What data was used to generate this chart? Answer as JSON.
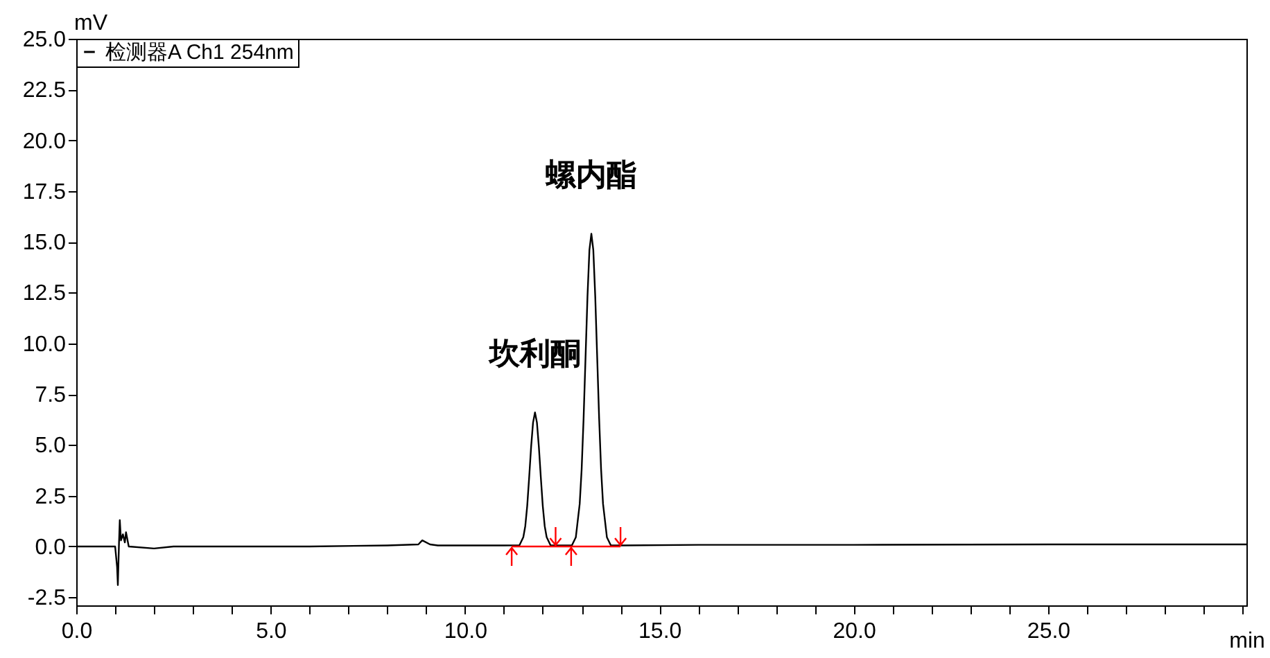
{
  "chart_data": {
    "type": "line",
    "xlabel": "min",
    "ylabel": "mV",
    "legend": "top left",
    "xlim": [
      0,
      30.1
    ],
    "ylim": [
      -2.9,
      25
    ],
    "xticks": [
      {
        "value": 0,
        "label": "0.0"
      },
      {
        "value": 1,
        "label": null
      },
      {
        "value": 2,
        "label": null
      },
      {
        "value": 3,
        "label": null
      },
      {
        "value": 4,
        "label": null
      },
      {
        "value": 5,
        "label": "5.0"
      },
      {
        "value": 6,
        "label": null
      },
      {
        "value": 7,
        "label": null
      },
      {
        "value": 8,
        "label": null
      },
      {
        "value": 9,
        "label": null
      },
      {
        "value": 10,
        "label": "10.0"
      },
      {
        "value": 11,
        "label": null
      },
      {
        "value": 12,
        "label": null
      },
      {
        "value": 13,
        "label": null
      },
      {
        "value": 14,
        "label": null
      },
      {
        "value": 15,
        "label": "15.0"
      },
      {
        "value": 16,
        "label": null
      },
      {
        "value": 17,
        "label": null
      },
      {
        "value": 18,
        "label": null
      },
      {
        "value": 19,
        "label": null
      },
      {
        "value": 20,
        "label": "20.0"
      },
      {
        "value": 21,
        "label": null
      },
      {
        "value": 22,
        "label": null
      },
      {
        "value": 23,
        "label": null
      },
      {
        "value": 24,
        "label": null
      },
      {
        "value": 25,
        "label": "25.0"
      },
      {
        "value": 26,
        "label": null
      },
      {
        "value": 27,
        "label": null
      },
      {
        "value": 28,
        "label": null
      },
      {
        "value": 29,
        "label": null
      },
      {
        "value": 30,
        "label": null
      }
    ],
    "yticks": [
      {
        "value": -2.5,
        "label": "-2.5"
      },
      {
        "value": 0,
        "label": "0.0"
      },
      {
        "value": 2.5,
        "label": "2.5"
      },
      {
        "value": 5,
        "label": "5.0"
      },
      {
        "value": 7.5,
        "label": "7.5"
      },
      {
        "value": 10,
        "label": "10.0"
      },
      {
        "value": 12.5,
        "label": "12.5"
      },
      {
        "value": 15,
        "label": "15.0"
      },
      {
        "value": 17.5,
        "label": "17.5"
      },
      {
        "value": 20,
        "label": "20.0"
      },
      {
        "value": 22.5,
        "label": "22.5"
      },
      {
        "value": 25,
        "label": "25.0"
      }
    ],
    "annotations": [
      {
        "text": "坎利酮",
        "x": 11.8,
        "y": 6.6
      },
      {
        "text": "螺内酯",
        "x": 13.25,
        "y": 15.4
      }
    ],
    "series": [
      {
        "name": "检测器A Ch1 254nm",
        "color": "#000000",
        "x": [
          0,
          1.0,
          1.05,
          1.07,
          1.1,
          1.12,
          1.15,
          1.2,
          1.25,
          1.28,
          1.35,
          2,
          2.5,
          4,
          6,
          8,
          8.8,
          8.9,
          9.1,
          9.3,
          11,
          11.4,
          11.5,
          11.55,
          11.6,
          11.65,
          11.7,
          11.75,
          11.8,
          11.85,
          11.9,
          11.95,
          12.0,
          12.05,
          12.1,
          12.2,
          12.5,
          12.75,
          12.85,
          12.95,
          13.0,
          13.05,
          13.1,
          13.15,
          13.2,
          13.25,
          13.3,
          13.35,
          13.4,
          13.45,
          13.5,
          13.55,
          13.65,
          13.75,
          14,
          16,
          20,
          25,
          30.1
        ],
        "values": [
          0,
          0,
          -1.0,
          -1.9,
          0.2,
          1.3,
          0.3,
          0.6,
          0.2,
          0.7,
          0,
          -0.1,
          0,
          0,
          0,
          0.05,
          0.1,
          0.3,
          0.1,
          0.05,
          0.05,
          0.06,
          0.46,
          1.0,
          2.0,
          3.4,
          4.9,
          6.1,
          6.6,
          6.1,
          4.9,
          3.4,
          2.0,
          1.0,
          0.46,
          0.06,
          0.05,
          0.06,
          0.45,
          2.1,
          3.8,
          6.3,
          9.3,
          12.3,
          14.6,
          15.4,
          14.6,
          12.3,
          9.3,
          6.3,
          3.8,
          2.1,
          0.45,
          0.06,
          0.05,
          0.08,
          0.08,
          0.1,
          0.1
        ]
      },
      {
        "type": "line",
        "color": "#ff0000",
        "x": [
          11.2,
          12.33,
          12.73,
          14.0
        ],
        "values": [
          0,
          0,
          0,
          0
        ]
      }
    ]
  }
}
